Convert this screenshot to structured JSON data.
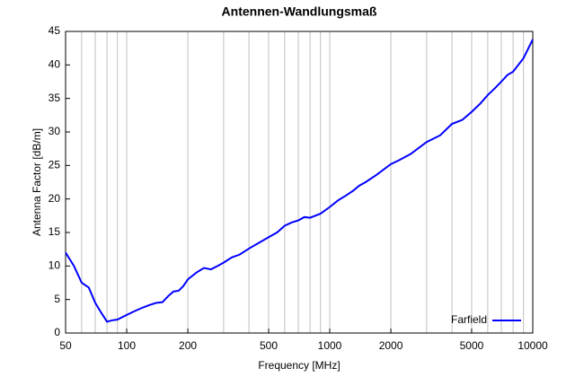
{
  "chart_data": {
    "type": "line",
    "title": "Antennen-Wandlungsmaß",
    "xlabel": "Frequency [MHz]",
    "ylabel": "Antenna Factor [dB/m]",
    "xscale": "log",
    "xlim": [
      50,
      10000
    ],
    "ylim": [
      0,
      45
    ],
    "xticks": [
      50,
      100,
      200,
      500,
      1000,
      2000,
      5000,
      10000
    ],
    "xgrid": [
      60,
      70,
      80,
      90,
      100,
      200,
      300,
      400,
      500,
      600,
      700,
      800,
      900,
      1000,
      2000,
      3000,
      4000,
      5000,
      6000,
      7000,
      8000,
      9000
    ],
    "yticks": [
      0,
      5,
      10,
      15,
      20,
      25,
      30,
      35,
      40,
      45
    ],
    "legend": "bottom-right",
    "x": [
      50,
      55,
      60,
      65,
      70,
      75,
      80,
      85,
      90,
      100,
      110,
      120,
      130,
      140,
      150,
      160,
      170,
      180,
      190,
      200,
      220,
      240,
      260,
      280,
      300,
      330,
      360,
      400,
      450,
      500,
      550,
      600,
      650,
      700,
      750,
      800,
      900,
      1000,
      1100,
      1200,
      1300,
      1400,
      1500,
      1700,
      2000,
      2200,
      2500,
      3000,
      3500,
      4000,
      4500,
      5000,
      5500,
      6000,
      6500,
      7000,
      7500,
      8000,
      9000,
      10000
    ],
    "series": [
      {
        "name": "Farfield",
        "color": "#0000ff",
        "values": [
          12,
          10,
          7.5,
          6.8,
          4.5,
          3,
          1.7,
          1.9,
          2,
          2.7,
          3.3,
          3.8,
          4.2,
          4.5,
          4.6,
          5.5,
          6.2,
          6.3,
          7,
          8,
          9,
          9.7,
          9.5,
          10,
          10.5,
          11.3,
          11.7,
          12.6,
          13.5,
          14.3,
          15,
          16,
          16.5,
          16.8,
          17.3,
          17.2,
          17.8,
          18.8,
          19.8,
          20.5,
          21.2,
          22,
          22.5,
          23.6,
          25.2,
          25.8,
          26.7,
          28.5,
          29.5,
          31.2,
          31.8,
          33,
          34.2,
          35.5,
          36.5,
          37.5,
          38.5,
          39,
          41,
          43.8
        ]
      }
    ]
  }
}
